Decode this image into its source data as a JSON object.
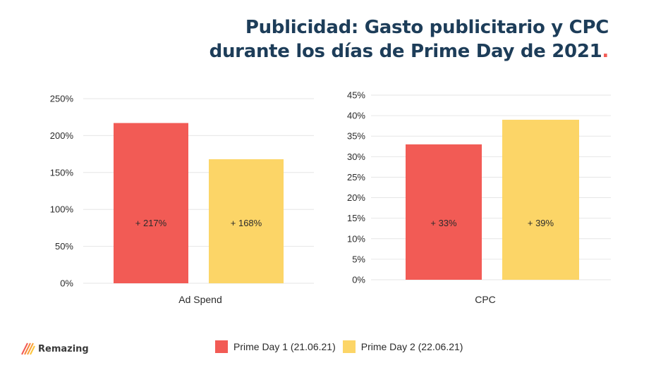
{
  "title": {
    "line1": "Publicidad: Gasto publicitario y CPC",
    "line2": "durante los días de Prime Day de 2021",
    "dot": "."
  },
  "brand": {
    "name": "Remazing",
    "icon": "stripes-icon"
  },
  "colors": {
    "day1": "#f25b55",
    "day2": "#fcd567",
    "title": "#1d3d59",
    "accent_dot": "#f25b55"
  },
  "legend": [
    {
      "label": "Prime Day 1 (21.06.21)",
      "color": "#f25b55"
    },
    {
      "label": "Prime Day 2 (22.06.21)",
      "color": "#fcd567"
    }
  ],
  "chart_data": [
    {
      "type": "bar",
      "xlabel": "Ad Spend",
      "ylabel": "",
      "ylim": [
        0,
        250
      ],
      "yticks": [
        0,
        50,
        100,
        150,
        200,
        250
      ],
      "tick_labels": [
        "0%",
        "50%",
        "100%",
        "150%",
        "200%",
        "250%"
      ],
      "series": [
        {
          "name": "Prime Day 1 (21.06.21)",
          "values": [
            217
          ],
          "data_label": "+ 217%"
        },
        {
          "name": "Prime Day 2 (22.06.21)",
          "values": [
            168
          ],
          "data_label": "+ 168%"
        }
      ]
    },
    {
      "type": "bar",
      "xlabel": "CPC",
      "ylabel": "",
      "ylim": [
        0,
        45
      ],
      "yticks": [
        0,
        5,
        10,
        15,
        20,
        25,
        30,
        35,
        40,
        45
      ],
      "tick_labels": [
        "0%",
        "5%",
        "10%",
        "15%",
        "20%",
        "25%",
        "30%",
        "35%",
        "40%",
        "45%"
      ],
      "series": [
        {
          "name": "Prime Day 1 (21.06.21)",
          "values": [
            33
          ],
          "data_label": "+ 33%"
        },
        {
          "name": "Prime Day 2 (22.06.21)",
          "values": [
            39
          ],
          "data_label": "+ 39%"
        }
      ]
    }
  ]
}
